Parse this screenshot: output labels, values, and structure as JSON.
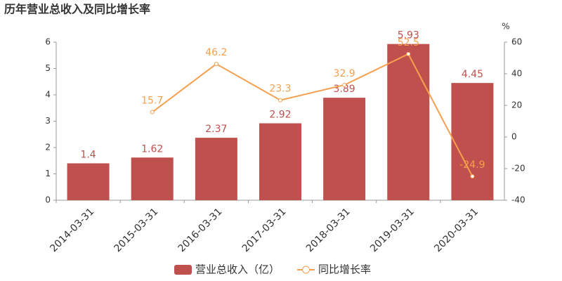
{
  "chart_data": {
    "type": "combo",
    "title": "历年营业总收入及同比增长率",
    "categories": [
      "2014-03-31",
      "2015-03-31",
      "2016-03-31",
      "2017-03-31",
      "2018-03-31",
      "2019-03-31",
      "2020-03-31"
    ],
    "series": [
      {
        "name": "营业总收入（亿）",
        "type": "bar",
        "color": "#c0504e",
        "values": [
          1.4,
          1.62,
          2.37,
          2.92,
          3.89,
          5.93,
          4.45
        ]
      },
      {
        "name": "同比增长率",
        "type": "line",
        "axis": "y2",
        "color": "#f5a04e",
        "values": [
          null,
          15.7,
          46.2,
          23.3,
          32.9,
          52.5,
          -24.9
        ]
      }
    ],
    "ylim": [
      0,
      6
    ],
    "yticks": [
      0,
      1,
      2,
      3,
      4,
      5,
      6
    ],
    "y2label": "%",
    "y2lim": [
      -40,
      60
    ],
    "y2ticks": [
      -40,
      -20,
      0,
      20,
      40,
      60
    ],
    "legend": "bottom"
  }
}
